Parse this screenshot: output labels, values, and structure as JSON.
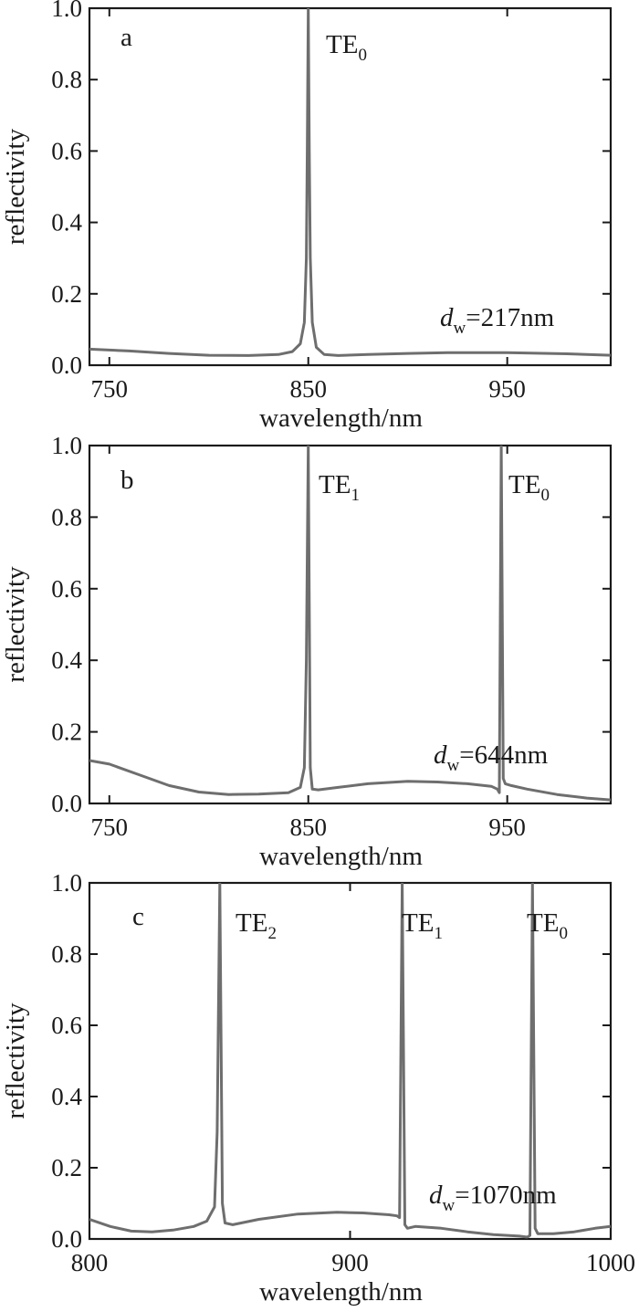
{
  "chart_data": [
    {
      "type": "line",
      "panel_label": "a",
      "xlabel": "wavelength/nm",
      "ylabel": "reflectivity",
      "xlim": [
        740,
        1002
      ],
      "ylim": [
        0,
        1
      ],
      "xticks": [
        "750",
        "850",
        "950"
      ],
      "yticks": [
        "0.0",
        "0.2",
        "0.4",
        "0.6",
        "0.8",
        "1.0"
      ],
      "annotation": {
        "italic": "d",
        "sub": "w",
        "rest": "=217nm"
      },
      "modes": [
        {
          "label": "TE",
          "sub": "0",
          "x": 850
        }
      ],
      "series": [
        {
          "x": [
            740,
            760,
            780,
            800,
            820,
            835,
            842,
            846,
            848,
            849,
            849.5,
            850,
            850.5,
            851,
            852,
            854,
            858,
            865,
            880,
            900,
            920,
            950,
            980,
            1002
          ],
          "y": [
            0.045,
            0.04,
            0.033,
            0.028,
            0.027,
            0.03,
            0.038,
            0.06,
            0.12,
            0.3,
            0.6,
            1.0,
            0.6,
            0.3,
            0.12,
            0.05,
            0.03,
            0.027,
            0.03,
            0.033,
            0.035,
            0.035,
            0.032,
            0.028
          ]
        }
      ]
    },
    {
      "type": "line",
      "panel_label": "b",
      "xlabel": "wavelength/nm",
      "ylabel": "reflectivity",
      "xlim": [
        740,
        1002
      ],
      "ylim": [
        0,
        1
      ],
      "xticks": [
        "750",
        "850",
        "950"
      ],
      "yticks": [
        "0.0",
        "0.2",
        "0.4",
        "0.6",
        "0.8",
        "1.0"
      ],
      "annotation": {
        "italic": "d",
        "sub": "w",
        "rest": "=644nm"
      },
      "modes": [
        {
          "label": "TE",
          "sub": "1",
          "x": 850
        },
        {
          "label": "TE",
          "sub": "0",
          "x": 947
        }
      ],
      "series": [
        {
          "x": [
            740,
            750,
            765,
            780,
            795,
            810,
            825,
            840,
            846,
            848,
            849,
            850,
            851,
            852,
            855,
            865,
            880,
            900,
            915,
            930,
            942,
            945,
            946,
            947,
            948,
            949,
            952,
            960,
            975,
            990,
            1002
          ],
          "y": [
            0.12,
            0.11,
            0.08,
            0.05,
            0.032,
            0.025,
            0.026,
            0.03,
            0.045,
            0.1,
            0.4,
            1.0,
            0.1,
            0.04,
            0.038,
            0.045,
            0.055,
            0.062,
            0.06,
            0.055,
            0.048,
            0.04,
            0.03,
            1.0,
            0.07,
            0.055,
            0.05,
            0.04,
            0.025,
            0.015,
            0.01
          ]
        }
      ]
    },
    {
      "type": "line",
      "panel_label": "c",
      "xlabel": "wavelength/nm",
      "ylabel": "reflectivity",
      "xlim": [
        800,
        1000
      ],
      "ylim": [
        0,
        1
      ],
      "xticks": [
        "800",
        "900",
        "1000"
      ],
      "yticks": [
        "0.0",
        "0.2",
        "0.4",
        "0.6",
        "0.8",
        "1.0"
      ],
      "annotation": {
        "italic": "d",
        "sub": "w",
        "rest": "=1070nm"
      },
      "modes": [
        {
          "label": "TE",
          "sub": "2",
          "x": 850
        },
        {
          "label": "TE",
          "sub": "1",
          "x": 920
        },
        {
          "label": "TE",
          "sub": "0",
          "x": 970
        }
      ],
      "series": [
        {
          "x": [
            800,
            808,
            816,
            824,
            832,
            840,
            845,
            848,
            849,
            850,
            851,
            852,
            855,
            865,
            880,
            895,
            905,
            915,
            918,
            919,
            920,
            921,
            922,
            925,
            935,
            945,
            955,
            965,
            968,
            969,
            970,
            971,
            972,
            978,
            986,
            994,
            1000
          ],
          "y": [
            0.055,
            0.035,
            0.022,
            0.02,
            0.025,
            0.035,
            0.05,
            0.09,
            0.3,
            1.0,
            0.1,
            0.045,
            0.04,
            0.055,
            0.07,
            0.075,
            0.073,
            0.068,
            0.065,
            0.06,
            1.0,
            0.04,
            0.03,
            0.035,
            0.03,
            0.02,
            0.012,
            0.008,
            0.005,
            0.01,
            1.0,
            0.03,
            0.015,
            0.015,
            0.02,
            0.03,
            0.035
          ]
        }
      ]
    }
  ]
}
